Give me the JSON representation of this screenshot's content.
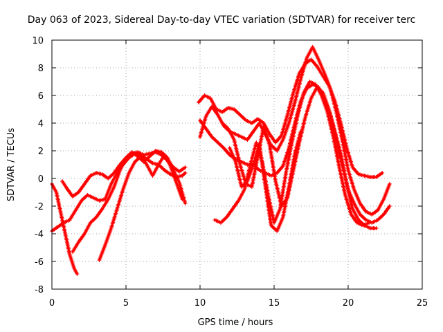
{
  "chart_data": {
    "type": "scatter",
    "title": "Day 063 of 2023, Sidereal Day-to-day VTEC variation (SDTVAR) for receiver terc",
    "xlabel": "GPS time / hours",
    "ylabel": "SDTVAR / TECUs",
    "xlim": [
      0,
      25
    ],
    "ylim": [
      -8,
      10
    ],
    "xticks": [
      0,
      5,
      10,
      15,
      20,
      25
    ],
    "yticks": [
      -8,
      -6,
      -4,
      -2,
      0,
      2,
      4,
      6,
      8,
      10
    ],
    "xtick_labels": [
      "0",
      "5",
      "10",
      "15",
      "20",
      "25"
    ],
    "ytick_labels": [
      "-8",
      "-6",
      "-4",
      "-2",
      "0",
      "2",
      "4",
      "6",
      "8",
      "10"
    ],
    "grid": true,
    "marker": "+",
    "color": "#ff0000",
    "series": [
      {
        "name": "s1",
        "x": [
          0.0,
          0.3,
          0.6,
          0.9,
          1.2,
          1.5,
          1.7
        ],
        "y": [
          -0.4,
          -1.0,
          -2.5,
          -4.0,
          -5.5,
          -6.5,
          -6.9
        ]
      },
      {
        "name": "s2",
        "x": [
          0.0,
          0.4,
          0.8,
          1.2,
          1.6,
          2.0,
          2.4,
          2.8,
          3.2,
          3.6,
          4.0,
          4.4,
          4.8,
          5.2,
          5.6,
          6.0,
          6.4,
          6.8,
          7.2,
          7.6,
          8.0,
          8.4,
          8.8,
          9.0
        ],
        "y": [
          -3.8,
          -3.5,
          -3.2,
          -3.0,
          -2.3,
          -1.6,
          -1.2,
          -1.4,
          -1.6,
          -1.5,
          -0.4,
          0.4,
          1.0,
          1.5,
          1.8,
          1.7,
          1.4,
          1.1,
          1.0,
          0.6,
          0.3,
          0.1,
          0.2,
          0.4
        ]
      },
      {
        "name": "s3",
        "x": [
          0.7,
          1.0,
          1.4,
          1.8,
          2.2,
          2.6,
          3.0,
          3.4,
          3.8,
          4.2,
          4.6,
          5.0,
          5.4,
          5.8,
          6.2,
          6.6,
          7.0,
          7.4,
          7.8,
          8.2,
          8.6,
          9.0
        ],
        "y": [
          -0.2,
          -0.7,
          -1.3,
          -1.0,
          -0.4,
          0.2,
          0.4,
          0.3,
          0.0,
          0.4,
          1.0,
          1.5,
          1.8,
          1.9,
          1.7,
          1.8,
          1.9,
          1.7,
          1.3,
          0.8,
          0.5,
          0.8
        ]
      },
      {
        "name": "s4",
        "x": [
          1.4,
          1.8,
          2.2,
          2.6,
          3.0,
          3.4,
          3.8,
          4.2,
          4.6,
          5.0,
          5.4,
          5.8,
          6.2,
          6.6,
          7.0,
          7.4,
          7.8,
          8.2,
          8.6,
          9.0
        ],
        "y": [
          -5.3,
          -4.6,
          -4.0,
          -3.2,
          -2.8,
          -2.2,
          -1.5,
          -0.6,
          0.6,
          1.5,
          1.9,
          1.6,
          1.2,
          1.6,
          2.0,
          1.9,
          1.5,
          0.6,
          -0.3,
          -1.8
        ]
      },
      {
        "name": "s5",
        "x": [
          3.2,
          3.6,
          4.0,
          4.4,
          4.8,
          5.2,
          5.6,
          6.0,
          6.4,
          6.8,
          7.2,
          7.6,
          8.0,
          8.4,
          8.8
        ],
        "y": [
          -5.9,
          -4.8,
          -3.6,
          -2.2,
          -0.8,
          0.4,
          1.2,
          1.6,
          1.0,
          0.2,
          1.0,
          1.7,
          0.9,
          -0.3,
          -1.5
        ]
      },
      {
        "name": "s6",
        "x": [
          9.9,
          10.3,
          10.7,
          11.1,
          11.5,
          11.9,
          12.3,
          12.7,
          13.1,
          13.5,
          13.9,
          14.3,
          14.7,
          15.1,
          15.5,
          15.9,
          16.3,
          16.7,
          17.1,
          17.5,
          17.9,
          18.3,
          18.7,
          19.1,
          19.5,
          19.9,
          20.3,
          20.7,
          21.1,
          21.5,
          21.9,
          22.3
        ],
        "y": [
          5.5,
          6.0,
          5.8,
          5.0,
          4.8,
          5.1,
          5.0,
          4.6,
          4.2,
          4.0,
          4.3,
          4.0,
          3.2,
          2.6,
          3.1,
          4.6,
          6.2,
          7.6,
          8.3,
          8.6,
          8.1,
          7.4,
          6.7,
          5.6,
          4.0,
          2.2,
          0.8,
          0.3,
          0.2,
          0.1,
          0.1,
          0.4
        ]
      },
      {
        "name": "s7",
        "x": [
          10.0,
          10.4,
          10.8,
          11.2,
          11.6,
          12.0,
          12.4,
          12.8,
          13.2,
          13.6,
          14.0,
          14.4,
          14.8,
          15.2,
          15.6,
          16.0,
          16.4,
          16.8,
          17.2,
          17.6,
          18.0,
          18.4,
          18.8,
          19.2,
          19.6,
          20.0,
          20.4,
          20.8,
          21.2,
          21.6,
          22.0,
          22.4,
          22.8
        ],
        "y": [
          3.0,
          4.5,
          5.2,
          4.6,
          3.8,
          3.4,
          3.2,
          3.0,
          2.8,
          3.4,
          4.0,
          3.2,
          2.4,
          2.0,
          2.8,
          4.0,
          5.5,
          7.2,
          8.7,
          9.5,
          8.6,
          7.6,
          6.5,
          4.8,
          2.8,
          0.6,
          -0.8,
          -1.8,
          -2.4,
          -2.6,
          -2.3,
          -1.5,
          -0.4
        ]
      },
      {
        "name": "s8",
        "x": [
          10.0,
          10.4,
          10.8,
          11.2,
          11.6,
          12.0,
          12.4,
          12.8,
          13.2,
          13.6,
          14.0,
          14.4,
          14.8,
          15.2,
          15.6,
          16.0,
          16.4,
          16.8,
          17.2,
          17.6,
          18.0,
          18.4,
          18.8,
          19.2,
          19.6,
          20.0,
          20.4,
          20.8,
          21.2,
          21.6,
          22.0,
          22.4,
          22.8
        ],
        "y": [
          4.2,
          3.6,
          3.0,
          2.6,
          2.2,
          1.7,
          1.4,
          1.2,
          1.0,
          1.0,
          0.6,
          0.4,
          0.2,
          0.4,
          0.9,
          2.2,
          4.0,
          5.6,
          6.5,
          6.8,
          6.6,
          5.8,
          4.6,
          2.8,
          1.0,
          -0.8,
          -1.8,
          -2.6,
          -3.0,
          -3.2,
          -3.0,
          -2.6,
          -2.0
        ]
      },
      {
        "name": "s9",
        "x": [
          11.0,
          11.4,
          11.8,
          12.2,
          12.6,
          13.0,
          13.4,
          13.8,
          14.2,
          14.6,
          15.0,
          15.4,
          15.8,
          16.2,
          16.6,
          17.0,
          17.4,
          17.8,
          18.2,
          18.6,
          19.0,
          19.4,
          19.8,
          20.2,
          20.6,
          21.0,
          21.4
        ],
        "y": [
          -3.0,
          -3.2,
          -2.8,
          -2.2,
          -1.6,
          -0.8,
          1.0,
          2.6,
          1.2,
          -1.2,
          -3.2,
          -2.2,
          0.4,
          2.6,
          4.6,
          6.2,
          7.0,
          6.8,
          6.0,
          4.8,
          3.0,
          0.8,
          -1.2,
          -2.6,
          -3.2,
          -3.4,
          -3.2
        ]
      },
      {
        "name": "s10",
        "x": [
          11.5,
          11.9,
          12.3,
          12.7,
          13.1,
          13.5,
          13.9,
          14.3,
          14.7,
          15.1,
          15.5,
          15.9,
          16.3,
          16.7,
          17.1,
          17.5,
          17.9,
          18.3,
          18.7,
          19.1,
          19.5,
          19.9,
          20.3,
          20.7,
          21.1,
          21.5,
          21.9
        ],
        "y": [
          4.0,
          3.6,
          2.8,
          1.0,
          -0.4,
          -0.6,
          1.6,
          3.8,
          2.4,
          -0.2,
          -2.0,
          -1.4,
          0.6,
          2.6,
          4.4,
          5.8,
          6.6,
          6.2,
          5.0,
          3.4,
          1.8,
          -0.4,
          -2.2,
          -3.0,
          -3.4,
          -3.6,
          -3.6
        ]
      },
      {
        "name": "s11",
        "x": [
          12.0,
          12.4,
          12.8,
          13.2,
          13.6,
          14.0,
          14.4,
          14.8,
          15.2,
          15.6,
          16.0,
          16.4,
          16.8
        ],
        "y": [
          2.2,
          1.2,
          -0.6,
          -0.2,
          1.0,
          2.5,
          -0.5,
          -3.4,
          -3.8,
          -2.8,
          -0.6,
          1.8,
          3.4
        ]
      }
    ]
  }
}
